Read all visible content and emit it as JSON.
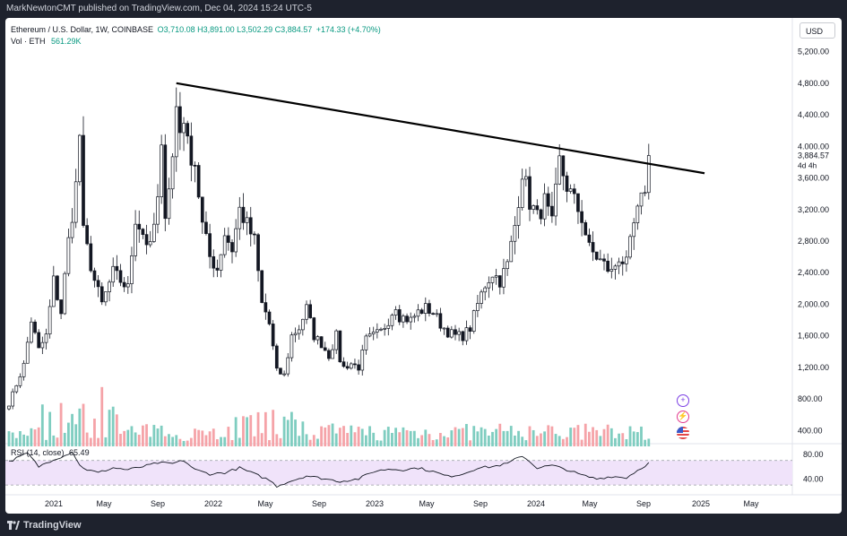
{
  "header": {
    "published": "MarkNewtonCMT published on TradingView.com, Dec 04, 2024 15:24 UTC-5"
  },
  "legend": {
    "symbol": "Ethereum / U.S. Dollar, 1W, COINBASE",
    "ohlc": "O3,710.08  H3,891.00  L3,502.29  C3,884.57",
    "change": "+174.33 (+4.70%)",
    "vol_label": "Vol · ETH",
    "vol_value": "561.29K"
  },
  "rsi_legend": {
    "label": "RSI (14, close)",
    "value": "65.49"
  },
  "currency_button": "USD",
  "price_badge": {
    "price": "3,884.57",
    "countdown": "4d 4h"
  },
  "footer": {
    "brand": "TradingView"
  },
  "colors": {
    "up": "#089981",
    "down": "#f23645",
    "vol_up": "#7fcdc0",
    "vol_down": "#f5a3a8",
    "rsi_line": "#131722",
    "rsi_band": "#f0e3fa",
    "trendline": "#000000",
    "candle": "#131722"
  },
  "icons": [
    "plus-circle-icon",
    "lightning-icon",
    "us-flag-icon"
  ],
  "chart_data": {
    "type": "candlestick",
    "interval": "1W",
    "price_axis": {
      "ticks": [
        400,
        800,
        1200,
        1600,
        2000,
        2400,
        2800,
        3200,
        3600,
        4000,
        4400,
        4800,
        5200
      ],
      "tick_labels": [
        "400.00",
        "800.00",
        "1,200.00",
        "1,600.00",
        "2,000.00",
        "2,400.00",
        "2,800.00",
        "3,200.00",
        "3,600.00",
        "4,000.00",
        "4,400.00",
        "4,800.00",
        "5,200.00"
      ],
      "range": [
        200,
        5400
      ]
    },
    "rsi_axis": {
      "ticks": [
        40,
        80
      ],
      "tick_labels": [
        "40.00",
        "80.00"
      ],
      "band": [
        30,
        70
      ]
    },
    "time_axis": {
      "labels": [
        "2021",
        "May",
        "Sep",
        "2022",
        "May",
        "Sep",
        "2023",
        "May",
        "Sep",
        "2024",
        "May",
        "Sep",
        "2025",
        "May"
      ]
    },
    "close_anchors": [
      [
        0,
        740
      ],
      [
        4,
        1230
      ],
      [
        6,
        1800
      ],
      [
        8,
        1420
      ],
      [
        10,
        1600
      ],
      [
        12,
        2300
      ],
      [
        14,
        1900
      ],
      [
        16,
        2800
      ],
      [
        18,
        3500
      ],
      [
        19,
        4150
      ],
      [
        20,
        2900
      ],
      [
        21,
        2700
      ],
      [
        23,
        2300
      ],
      [
        25,
        2000
      ],
      [
        28,
        2400
      ],
      [
        30,
        2300
      ],
      [
        32,
        2200
      ],
      [
        34,
        3100
      ],
      [
        36,
        2900
      ],
      [
        38,
        2700
      ],
      [
        40,
        3300
      ],
      [
        41,
        3900
      ],
      [
        42,
        3200
      ],
      [
        44,
        3850
      ],
      [
        45,
        4500
      ],
      [
        46,
        4200
      ],
      [
        47,
        4400
      ],
      [
        48,
        4000
      ],
      [
        50,
        3800
      ],
      [
        52,
        3000
      ],
      [
        54,
        2600
      ],
      [
        56,
        2450
      ],
      [
        58,
        2900
      ],
      [
        60,
        2700
      ],
      [
        62,
        3200
      ],
      [
        64,
        3000
      ],
      [
        66,
        2800
      ],
      [
        67,
        2400
      ],
      [
        68,
        2000
      ],
      [
        69,
        1900
      ],
      [
        70,
        1750
      ],
      [
        71,
        1450
      ],
      [
        72,
        1150
      ],
      [
        74,
        1100
      ],
      [
        76,
        1600
      ],
      [
        78,
        1700
      ],
      [
        80,
        1950
      ],
      [
        82,
        1600
      ],
      [
        84,
        1500
      ],
      [
        86,
        1350
      ],
      [
        88,
        1600
      ],
      [
        89,
        1300
      ],
      [
        90,
        1200
      ],
      [
        92,
        1250
      ],
      [
        94,
        1200
      ],
      [
        96,
        1550
      ],
      [
        98,
        1600
      ],
      [
        100,
        1650
      ],
      [
        102,
        1800
      ],
      [
        104,
        2000
      ],
      [
        105,
        1850
      ],
      [
        108,
        1800
      ],
      [
        110,
        1900
      ],
      [
        112,
        1950
      ],
      [
        114,
        1900
      ],
      [
        116,
        1750
      ],
      [
        118,
        1650
      ],
      [
        120,
        1600
      ],
      [
        122,
        1600
      ],
      [
        124,
        1700
      ],
      [
        126,
        2000
      ],
      [
        128,
        2250
      ],
      [
        130,
        2400
      ],
      [
        132,
        2300
      ],
      [
        134,
        2500
      ],
      [
        136,
        3000
      ],
      [
        138,
        3700
      ],
      [
        139,
        3500
      ],
      [
        140,
        3300
      ],
      [
        142,
        3100
      ],
      [
        144,
        3300
      ],
      [
        146,
        3000
      ],
      [
        148,
        3800
      ],
      [
        150,
        3500
      ],
      [
        152,
        3300
      ],
      [
        154,
        3100
      ],
      [
        156,
        2700
      ],
      [
        158,
        2600
      ],
      [
        160,
        2500
      ],
      [
        162,
        2400
      ],
      [
        164,
        2600
      ],
      [
        166,
        2500
      ],
      [
        168,
        3000
      ],
      [
        170,
        3300
      ],
      [
        171,
        3500
      ],
      [
        172,
        3884.57
      ]
    ],
    "rsi_anchors": [
      [
        0,
        68
      ],
      [
        5,
        82
      ],
      [
        8,
        60
      ],
      [
        12,
        72
      ],
      [
        15,
        78
      ],
      [
        17,
        85
      ],
      [
        19,
        62
      ],
      [
        21,
        55
      ],
      [
        24,
        50
      ],
      [
        28,
        58
      ],
      [
        32,
        55
      ],
      [
        36,
        60
      ],
      [
        40,
        66
      ],
      [
        44,
        65
      ],
      [
        47,
        70
      ],
      [
        50,
        55
      ],
      [
        54,
        48
      ],
      [
        58,
        50
      ],
      [
        62,
        58
      ],
      [
        66,
        48
      ],
      [
        70,
        38
      ],
      [
        72,
        28
      ],
      [
        75,
        35
      ],
      [
        80,
        45
      ],
      [
        85,
        40
      ],
      [
        89,
        36
      ],
      [
        94,
        40
      ],
      [
        98,
        52
      ],
      [
        102,
        56
      ],
      [
        106,
        55
      ],
      [
        110,
        58
      ],
      [
        114,
        52
      ],
      [
        118,
        44
      ],
      [
        122,
        48
      ],
      [
        126,
        58
      ],
      [
        130,
        60
      ],
      [
        134,
        65
      ],
      [
        138,
        78
      ],
      [
        142,
        58
      ],
      [
        146,
        62
      ],
      [
        150,
        55
      ],
      [
        154,
        46
      ],
      [
        158,
        40
      ],
      [
        162,
        44
      ],
      [
        166,
        42
      ],
      [
        170,
        58
      ],
      [
        172,
        65.49
      ]
    ],
    "trendline": {
      "start": [
        45,
        4800
      ],
      "end": [
        187,
        3660
      ]
    }
  }
}
